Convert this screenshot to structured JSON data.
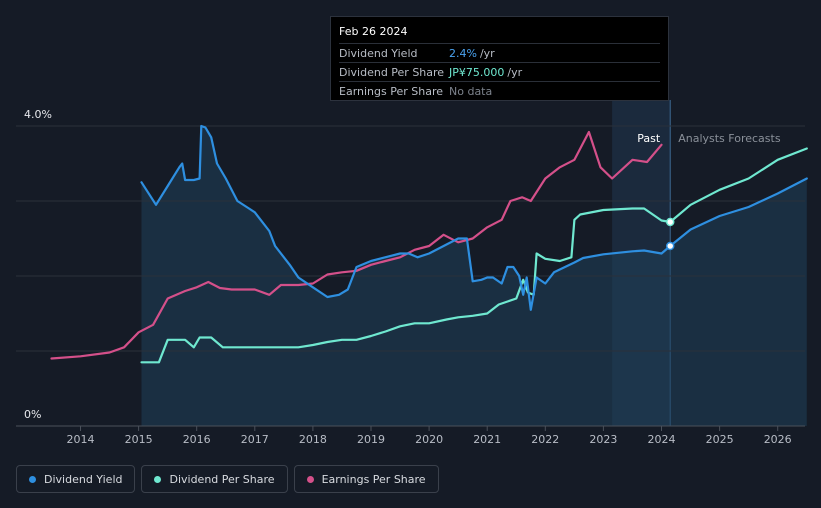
{
  "tooltip": {
    "date": "Feb 26 2024",
    "rows": [
      {
        "label": "Dividend Yield",
        "value": "2.4%",
        "unit": "/yr"
      },
      {
        "label": "Dividend Per Share",
        "value": "JP¥75.000",
        "unit": "/yr"
      },
      {
        "label": "Earnings Per Share",
        "value": "No data",
        "unit": ""
      }
    ]
  },
  "legend": [
    {
      "label": "Dividend Yield",
      "color": "#2e8fe0"
    },
    {
      "label": "Dividend Per Share",
      "color": "#6fe8d0"
    },
    {
      "label": "Earnings Per Share",
      "color": "#d4508a"
    }
  ],
  "chart_data": {
    "type": "line",
    "y_axis": {
      "labels": [
        "4.0%",
        "0%"
      ],
      "range_pct": [
        0,
        4.0
      ]
    },
    "x_ticks": [
      "2014",
      "2015",
      "2016",
      "2017",
      "2018",
      "2019",
      "2020",
      "2021",
      "2022",
      "2023",
      "2024",
      "2025",
      "2026"
    ],
    "x_range": [
      2013.0,
      2026.5
    ],
    "regions": {
      "past_label": "Past",
      "forecast_label": "Analysts Forecasts",
      "divider": 2024.15,
      "shade_start": 2023.15
    },
    "series": [
      {
        "name": "Dividend Yield",
        "color": "#2e8fe0",
        "unit": "%",
        "points": [
          [
            2015.05,
            3.25
          ],
          [
            2015.3,
            2.95
          ],
          [
            2015.5,
            3.2
          ],
          [
            2015.7,
            3.45
          ],
          [
            2015.75,
            3.5
          ],
          [
            2015.8,
            3.28
          ],
          [
            2015.95,
            3.28
          ],
          [
            2016.05,
            3.3
          ],
          [
            2016.08,
            4.0
          ],
          [
            2016.15,
            3.98
          ],
          [
            2016.25,
            3.85
          ],
          [
            2016.35,
            3.5
          ],
          [
            2016.5,
            3.3
          ],
          [
            2016.7,
            3.0
          ],
          [
            2016.9,
            2.9
          ],
          [
            2017.0,
            2.85
          ],
          [
            2017.1,
            2.75
          ],
          [
            2017.25,
            2.6
          ],
          [
            2017.35,
            2.4
          ],
          [
            2017.6,
            2.15
          ],
          [
            2017.75,
            1.98
          ],
          [
            2018.0,
            1.85
          ],
          [
            2018.25,
            1.72
          ],
          [
            2018.45,
            1.75
          ],
          [
            2018.6,
            1.82
          ],
          [
            2018.75,
            2.12
          ],
          [
            2019.0,
            2.2
          ],
          [
            2019.5,
            2.3
          ],
          [
            2019.65,
            2.3
          ],
          [
            2019.8,
            2.25
          ],
          [
            2020.0,
            2.3
          ],
          [
            2020.3,
            2.42
          ],
          [
            2020.5,
            2.5
          ],
          [
            2020.65,
            2.5
          ],
          [
            2020.75,
            1.93
          ],
          [
            2020.9,
            1.95
          ],
          [
            2021.0,
            1.98
          ],
          [
            2021.1,
            1.98
          ],
          [
            2021.25,
            1.9
          ],
          [
            2021.35,
            2.12
          ],
          [
            2021.45,
            2.12
          ],
          [
            2021.55,
            2.0
          ],
          [
            2021.62,
            1.75
          ],
          [
            2021.68,
            1.98
          ],
          [
            2021.75,
            1.55
          ],
          [
            2021.85,
            1.98
          ],
          [
            2022.0,
            1.9
          ],
          [
            2022.15,
            2.05
          ],
          [
            2022.5,
            2.18
          ],
          [
            2022.65,
            2.24
          ],
          [
            2023.0,
            2.29
          ],
          [
            2023.5,
            2.33
          ],
          [
            2023.7,
            2.34
          ],
          [
            2024.0,
            2.3
          ],
          [
            2024.15,
            2.4
          ],
          [
            2024.5,
            2.62
          ],
          [
            2025.0,
            2.8
          ],
          [
            2025.5,
            2.92
          ],
          [
            2026.0,
            3.1
          ],
          [
            2026.5,
            3.3
          ]
        ]
      },
      {
        "name": "Dividend Per Share",
        "color": "#6fe8d0",
        "unit": "JP¥",
        "points": [
          [
            2015.05,
            0.85
          ],
          [
            2015.35,
            0.85
          ],
          [
            2015.5,
            1.15
          ],
          [
            2015.8,
            1.15
          ],
          [
            2015.95,
            1.05
          ],
          [
            2016.05,
            1.18
          ],
          [
            2016.25,
            1.18
          ],
          [
            2016.45,
            1.05
          ],
          [
            2017.0,
            1.05
          ],
          [
            2017.5,
            1.05
          ],
          [
            2017.75,
            1.05
          ],
          [
            2018.0,
            1.08
          ],
          [
            2018.25,
            1.12
          ],
          [
            2018.5,
            1.15
          ],
          [
            2018.75,
            1.15
          ],
          [
            2019.0,
            1.2
          ],
          [
            2019.25,
            1.26
          ],
          [
            2019.5,
            1.33
          ],
          [
            2019.75,
            1.37
          ],
          [
            2020.0,
            1.37
          ],
          [
            2020.3,
            1.42
          ],
          [
            2020.5,
            1.45
          ],
          [
            2020.75,
            1.47
          ],
          [
            2021.0,
            1.5
          ],
          [
            2021.2,
            1.62
          ],
          [
            2021.5,
            1.7
          ],
          [
            2021.62,
            1.95
          ],
          [
            2021.7,
            1.78
          ],
          [
            2021.8,
            1.75
          ],
          [
            2021.85,
            2.3
          ],
          [
            2022.0,
            2.23
          ],
          [
            2022.25,
            2.2
          ],
          [
            2022.45,
            2.25
          ],
          [
            2022.5,
            2.75
          ],
          [
            2022.6,
            2.82
          ],
          [
            2023.0,
            2.88
          ],
          [
            2023.5,
            2.9
          ],
          [
            2023.7,
            2.9
          ],
          [
            2024.0,
            2.74
          ],
          [
            2024.15,
            2.72
          ],
          [
            2024.5,
            2.95
          ],
          [
            2025.0,
            3.15
          ],
          [
            2025.5,
            3.3
          ],
          [
            2026.0,
            3.55
          ],
          [
            2026.5,
            3.7
          ]
        ]
      },
      {
        "name": "Earnings Per Share",
        "color": "#d4508a",
        "unit": "JP¥",
        "points": [
          [
            2013.5,
            0.9
          ],
          [
            2014.0,
            0.93
          ],
          [
            2014.5,
            0.98
          ],
          [
            2014.75,
            1.05
          ],
          [
            2015.0,
            1.25
          ],
          [
            2015.25,
            1.35
          ],
          [
            2015.5,
            1.7
          ],
          [
            2015.8,
            1.8
          ],
          [
            2016.0,
            1.85
          ],
          [
            2016.2,
            1.92
          ],
          [
            2016.4,
            1.84
          ],
          [
            2016.6,
            1.82
          ],
          [
            2017.0,
            1.82
          ],
          [
            2017.25,
            1.75
          ],
          [
            2017.45,
            1.88
          ],
          [
            2017.75,
            1.88
          ],
          [
            2018.0,
            1.9
          ],
          [
            2018.25,
            2.02
          ],
          [
            2018.5,
            2.05
          ],
          [
            2018.75,
            2.07
          ],
          [
            2019.0,
            2.15
          ],
          [
            2019.25,
            2.2
          ],
          [
            2019.5,
            2.25
          ],
          [
            2019.75,
            2.35
          ],
          [
            2020.0,
            2.4
          ],
          [
            2020.25,
            2.55
          ],
          [
            2020.5,
            2.45
          ],
          [
            2020.75,
            2.5
          ],
          [
            2021.0,
            2.65
          ],
          [
            2021.25,
            2.75
          ],
          [
            2021.4,
            3.0
          ],
          [
            2021.6,
            3.05
          ],
          [
            2021.75,
            3.0
          ],
          [
            2022.0,
            3.3
          ],
          [
            2022.25,
            3.45
          ],
          [
            2022.5,
            3.55
          ],
          [
            2022.75,
            3.92
          ],
          [
            2022.95,
            3.45
          ],
          [
            2023.15,
            3.3
          ],
          [
            2023.5,
            3.55
          ],
          [
            2023.75,
            3.52
          ],
          [
            2024.0,
            3.75
          ]
        ]
      }
    ],
    "markers": [
      {
        "series": "Dividend Per Share",
        "x": 2024.15,
        "y": 2.72
      },
      {
        "series": "Dividend Yield",
        "x": 2024.15,
        "y": 2.4
      }
    ]
  }
}
